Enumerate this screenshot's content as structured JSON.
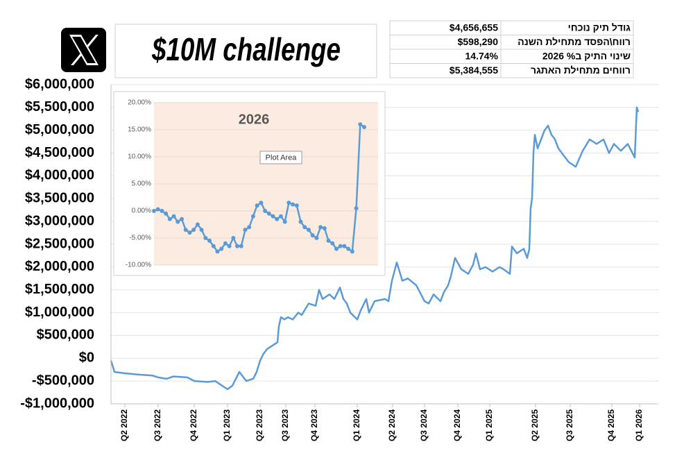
{
  "title": "$10M challenge",
  "stats": {
    "rows": [
      [
        "$4,656,655",
        "גודל תיק נוכחי"
      ],
      [
        "$598,290",
        "רווח\\הפסד מתחילת השנה"
      ],
      [
        "14.74%",
        "שינוי התיק ב% 2026"
      ],
      [
        "$5,384,555",
        "רווחים מתחילת האתגר"
      ]
    ]
  },
  "tooltip": "Plot Area",
  "chart_data": [
    {
      "type": "line",
      "x": [
        0,
        5,
        20,
        40,
        60,
        68,
        80,
        90,
        110,
        120,
        140,
        150,
        160,
        168,
        175,
        180,
        185,
        195,
        205,
        210,
        215,
        220,
        225,
        235,
        240,
        242,
        245,
        250,
        255,
        262,
        270,
        275,
        285,
        295,
        300,
        305,
        315,
        322,
        330,
        335,
        340,
        345,
        355,
        360,
        368,
        372,
        380,
        395,
        400,
        405,
        412,
        420,
        428,
        440,
        452,
        458,
        465,
        475,
        480,
        486,
        490,
        496,
        505,
        515,
        522,
        526,
        532,
        540,
        550,
        560,
        566,
        575,
        578,
        585,
        595,
        600,
        603,
        605,
        607,
        609,
        611,
        615,
        625,
        630,
        635,
        640,
        645,
        650,
        660,
        670,
        680,
        690,
        700,
        710,
        718,
        725,
        735,
        745,
        755,
        758,
        760
      ],
      "series": [
        {
          "color": "#5b9bd5",
          "values": [
            -50000,
            -300000,
            -330000,
            -360000,
            -380000,
            -420000,
            -450000,
            -400000,
            -420000,
            -500000,
            -520000,
            -500000,
            -600000,
            -680000,
            -600000,
            -450000,
            -300000,
            -500000,
            -450000,
            -300000,
            -50000,
            100000,
            200000,
            300000,
            350000,
            700000,
            900000,
            850000,
            900000,
            850000,
            1000000,
            950000,
            1200000,
            1150000,
            1500000,
            1300000,
            1400000,
            1300000,
            1550000,
            1300000,
            1200000,
            1000000,
            850000,
            1050000,
            1300000,
            1000000,
            1250000,
            1300000,
            1250000,
            1700000,
            2100000,
            1700000,
            1750000,
            1600000,
            1250000,
            1200000,
            1400000,
            1250000,
            1450000,
            1600000,
            1800000,
            2200000,
            1950000,
            1850000,
            2050000,
            2300000,
            1950000,
            2000000,
            1900000,
            2000000,
            1950000,
            1850000,
            2450000,
            2300000,
            2400000,
            2200000,
            2400000,
            3300000,
            3500000,
            4500000,
            4900000,
            4600000,
            5000000,
            5100000,
            4900000,
            4800000,
            4600000,
            4500000,
            4300000,
            4200000,
            4550000,
            4800000,
            4700000,
            4800000,
            4500000,
            4700000,
            4550000,
            4700000,
            4400000,
            5500000,
            5400000
          ]
        }
      ],
      "xlim": [
        0,
        790
      ],
      "xticks": [
        {
          "value": 20,
          "label": "Q2 2022"
        },
        {
          "value": 68,
          "label": "Q3 2022"
        },
        {
          "value": 120,
          "label": "Q4 2022"
        },
        {
          "value": 168,
          "label": "Q1 2023"
        },
        {
          "value": 215,
          "label": "Q2 2023"
        },
        {
          "value": 252,
          "label": "Q3 2023"
        },
        {
          "value": 294,
          "label": "Q4 2023"
        },
        {
          "value": 355,
          "label": "Q1 2024"
        },
        {
          "value": 406,
          "label": "Q2 2024"
        },
        {
          "value": 452,
          "label": "Q3 2024"
        },
        {
          "value": 500,
          "label": "Q4 2024"
        },
        {
          "value": 546,
          "label": "Q1 2025"
        },
        {
          "value": 612,
          "label": "Q2 2025"
        },
        {
          "value": 662,
          "label": "Q3 2025"
        },
        {
          "value": 722,
          "label": "Q4 2025"
        },
        {
          "value": 762,
          "label": "Q1 2026"
        }
      ],
      "ylim": [
        -1000000,
        6000000
      ],
      "yticks": [
        {
          "value": -1000000,
          "label": "-$1,000,000"
        },
        {
          "value": -500000,
          "label": "-$500,000"
        },
        {
          "value": 0,
          "label": "$0"
        },
        {
          "value": 500000,
          "label": "$500,000"
        },
        {
          "value": 1000000,
          "label": "$1,000,000"
        },
        {
          "value": 1500000,
          "label": "$1,500,000"
        },
        {
          "value": 2000000,
          "label": "$2,000,000"
        },
        {
          "value": 2500000,
          "label": "$2,500,000"
        },
        {
          "value": 3000000,
          "label": "$3,000,000"
        },
        {
          "value": 3500000,
          "label": "$3,500,000"
        },
        {
          "value": 4000000,
          "label": "$4,000,000"
        },
        {
          "value": 4500000,
          "label": "$4,500,000"
        },
        {
          "value": 5000000,
          "label": "$5,000,000"
        },
        {
          "value": 5500000,
          "label": "$5,500,000"
        },
        {
          "value": 6000000,
          "label": "$6,000,000"
        }
      ],
      "grid": true
    },
    {
      "type": "line",
      "title": "2026",
      "color": "#5b9bd5",
      "markers": true,
      "background": "#fcebe1",
      "values": [
        0,
        0.3,
        0,
        -0.5,
        -1.5,
        -1,
        -2,
        -1.5,
        -3.5,
        -4,
        -3.5,
        -2.5,
        -3.5,
        -5,
        -5.5,
        -6.5,
        -7.5,
        -7,
        -6,
        -6.5,
        -5,
        -6.5,
        -6.5,
        -3.5,
        -3,
        -1,
        1,
        1.5,
        0,
        -0.5,
        -1,
        -1.5,
        -1,
        -2,
        1.5,
        1.2,
        1,
        -2,
        -3,
        -3.5,
        -4.5,
        -5,
        -3,
        -3.2,
        -5.5,
        -6,
        -7,
        -6.5,
        -6.5,
        -7,
        -7.5,
        0.5,
        16,
        15.5
      ],
      "ylim": [
        -10,
        20
      ],
      "yticks": [
        {
          "value": -10,
          "label": "-10.00%"
        },
        {
          "value": -5,
          "label": "-5.00%"
        },
        {
          "value": 0,
          "label": "0.00%"
        },
        {
          "value": 5,
          "label": "5.00%"
        },
        {
          "value": 10,
          "label": "10.00%"
        },
        {
          "value": 15,
          "label": "15.00%"
        },
        {
          "value": 20,
          "label": "20.00%"
        }
      ],
      "grid": true
    }
  ]
}
